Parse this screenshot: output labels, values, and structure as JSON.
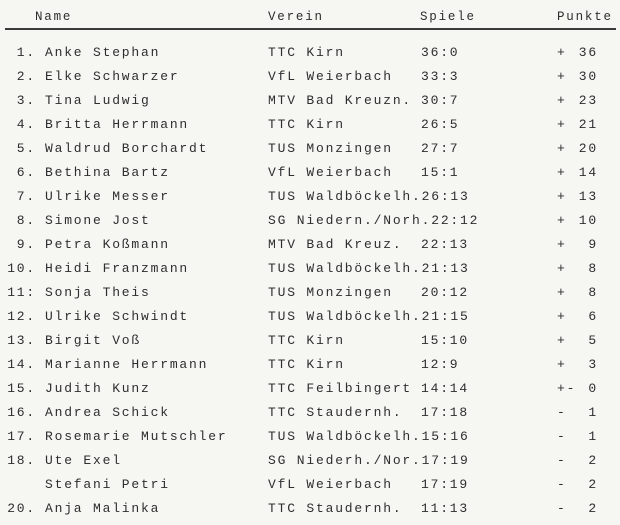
{
  "headers": {
    "name": "Name",
    "verein": "Verein",
    "spiele": "Spiele",
    "punkte": "Punkte"
  },
  "rows": [
    {
      "rank": "1.",
      "name": "Anke Stephan",
      "verein": "TTC Kirn",
      "spiele": "36:0",
      "sign": "+",
      "punkte": "36"
    },
    {
      "rank": "2.",
      "name": "Elke Schwarzer",
      "verein": "VfL Weierbach",
      "spiele": "33:3",
      "sign": "+",
      "punkte": "30"
    },
    {
      "rank": "3.",
      "name": "Tina Ludwig",
      "verein": "MTV Bad Kreuzn.",
      "spiele": "30:7",
      "sign": "+",
      "punkte": "23"
    },
    {
      "rank": "4.",
      "name": "Britta Herrmann",
      "verein": "TTC Kirn",
      "spiele": "26:5",
      "sign": "+",
      "punkte": "21"
    },
    {
      "rank": "5.",
      "name": "Waldrud Borchardt",
      "verein": "TUS Monzingen",
      "spiele": "27:7",
      "sign": "+",
      "punkte": "20"
    },
    {
      "rank": "6.",
      "name": "Bethina Bartz",
      "verein": "VfL Weierbach",
      "spiele": "15:1",
      "sign": "+",
      "punkte": "14"
    },
    {
      "rank": "7.",
      "name": "Ulrike Messer",
      "verein": "TUS Waldböckelh.",
      "spiele": "26:13",
      "sign": "+",
      "punkte": "13"
    },
    {
      "rank": "8.",
      "name": "Simone Jost",
      "verein": "SG Niedern./Norh.",
      "spiele": "22:12",
      "sign": "+",
      "punkte": "10"
    },
    {
      "rank": "9.",
      "name": "Petra Koßmann",
      "verein": "MTV Bad Kreuz.",
      "spiele": "22:13",
      "sign": "+",
      "punkte": "9"
    },
    {
      "rank": "10.",
      "name": "Heidi Franzmann",
      "verein": "TUS Waldböckelh.",
      "spiele": "21:13",
      "sign": "+",
      "punkte": "8"
    },
    {
      "rank": "11:",
      "name": "Sonja Theis",
      "verein": "TUS Monzingen",
      "spiele": "20:12",
      "sign": "+",
      "punkte": "8"
    },
    {
      "rank": "12.",
      "name": "Ulrike Schwindt",
      "verein": "TUS Waldböckelh.",
      "spiele": "21:15",
      "sign": "+",
      "punkte": "6"
    },
    {
      "rank": "13.",
      "name": "Birgit Voß",
      "verein": "TTC Kirn",
      "spiele": "15:10",
      "sign": "+",
      "punkte": "5"
    },
    {
      "rank": "14.",
      "name": "Marianne Herrmann",
      "verein": "TTC Kirn",
      "spiele": "12:9",
      "sign": "+",
      "punkte": "3"
    },
    {
      "rank": "15.",
      "name": "Judith Kunz",
      "verein": "TTC Feilbingert",
      "spiele": "14:14",
      "sign": "+-",
      "punkte": "0"
    },
    {
      "rank": "16.",
      "name": "Andrea Schick",
      "verein": "TTC Staudernh.",
      "spiele": "17:18",
      "sign": "-",
      "punkte": "1"
    },
    {
      "rank": "17.",
      "name": "Rosemarie Mutschler",
      "verein": "TUS Waldböckelh.",
      "spiele": "15:16",
      "sign": "-",
      "punkte": "1"
    },
    {
      "rank": "18.",
      "name": "Ute Exel",
      "verein": "SG Niederh./Nor.",
      "spiele": "17:19",
      "sign": "-",
      "punkte": "2"
    },
    {
      "rank": "",
      "name": "Stefani Petri",
      "verein": "VfL Weierbach",
      "spiele": "17:19",
      "sign": "-",
      "punkte": "2"
    },
    {
      "rank": "20.",
      "name": "Anja Malinka",
      "verein": "TTC Staudernh.",
      "spiele": "11:13",
      "sign": "-",
      "punkte": "2"
    }
  ]
}
